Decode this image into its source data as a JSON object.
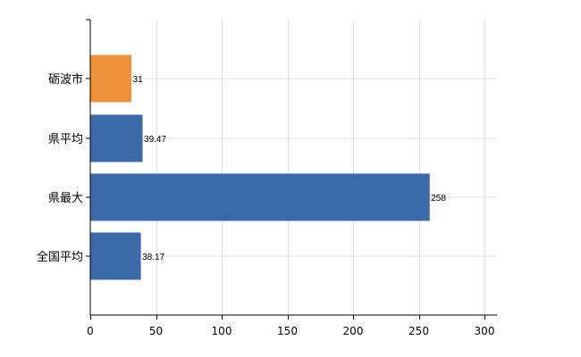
{
  "chart_data": {
    "type": "bar",
    "orientation": "horizontal",
    "title": "",
    "xlabel": "",
    "ylabel": "",
    "categories": [
      "砺波市",
      "県平均",
      "県最大",
      "全国平均"
    ],
    "values": [
      31,
      39.47,
      258,
      38.17
    ],
    "value_labels": [
      "31",
      "39.47",
      "258",
      "38.17"
    ],
    "bar_colors": [
      "#f0923a",
      "#3b6aa9",
      "#3b6aa9",
      "#3b6aa9"
    ],
    "xlim": [
      0,
      310
    ],
    "x_ticks": [
      0,
      50,
      100,
      150,
      200,
      250,
      300
    ],
    "x_tick_labels": [
      "0",
      "50",
      "100",
      "150",
      "200",
      "250",
      "300"
    ],
    "grid": true,
    "grid_color": "#dcdcdc",
    "axis_color": "#000000"
  }
}
